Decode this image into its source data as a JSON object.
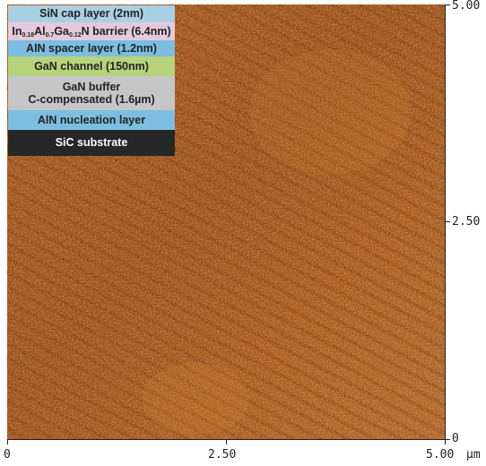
{
  "afm": {
    "x_ticks": [
      "0",
      "2.50",
      "5.00"
    ],
    "y_ticks": [
      "5.00",
      "2.50",
      "0"
    ],
    "unit": "µm",
    "scan_size_um": 5.0
  },
  "layers": [
    {
      "label": "SiN cap layer (2nm)",
      "color": "#a9cfe3",
      "text_color": "#222222"
    },
    {
      "label_parts": [
        "In",
        "0.18",
        "Al",
        "0.7",
        "Ga",
        "0.12",
        "N barrier (6.4nm)"
      ],
      "color": "#e3c9dc",
      "text_color": "#222222"
    },
    {
      "label": "AlN spacer layer (1.2nm)",
      "color": "#7cbde0",
      "text_color": "#222222"
    },
    {
      "label": "GaN channel (150nm)",
      "color": "#b7d47c",
      "text_color": "#222222"
    },
    {
      "label_lines": [
        "GaN buffer",
        "C-compensated (1.6µm)"
      ],
      "color": "#c6c6c6",
      "text_color": "#222222"
    },
    {
      "label": "AlN nucleation layer",
      "color": "#7cbde0",
      "text_color": "#222222"
    },
    {
      "label": "SiC substrate",
      "color": "#262626",
      "text_color": "#ffffff"
    }
  ],
  "colors": {
    "afm_base": "#a0521f",
    "afm_dark": "#6e2f0e",
    "afm_light": "#d9963f"
  }
}
